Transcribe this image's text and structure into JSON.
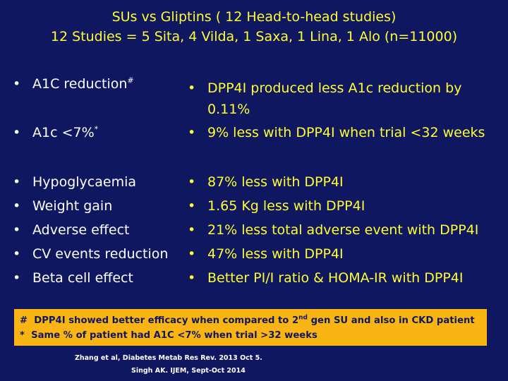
{
  "title": {
    "line1": "SUs vs Gliptins ( 12 Head-to-head studies)",
    "line2": "12 Studies = 5 Sita, 4 Vilda, 1 Saxa, 1 Lina, 1 Alo (n=11000)"
  },
  "bullet_char": "•",
  "left": {
    "a1c_reduction": "A1C reduction",
    "a1c_reduction_mark": "#",
    "a1c_target": "A1c <7%",
    "a1c_target_mark": "*",
    "hypoglycaemia": "Hypoglycaemia",
    "weight_gain": "Weight  gain",
    "adverse_effect": "Adverse effect",
    "cv_events": "CV events reduction",
    "beta_cell": "Beta cell effect"
  },
  "right": {
    "a1c_reduction_line1": "DPP4I produced less A1c reduction by",
    "a1c_reduction_line2": "0.11%",
    "a1c_target": "9% less with DPP4I when trial <32 weeks",
    "hypoglycaemia": "87% less with DPP4I",
    "weight_gain": "1.65 Kg less with DPP4I",
    "adverse_effect": "21% less total adverse event with DPP4I",
    "cv_events": "47% less with DPP4I",
    "beta_cell": "Better PI/I ratio & HOMA-IR with DPP4I"
  },
  "notes": {
    "note1_mark": "#",
    "note1_text_a": "DPP4I showed better efficacy  when compared to 2",
    "note1_sup": "nd",
    "note1_text_b": " gen SU and also in CKD patient",
    "note2_mark": "*",
    "note2_text": "Same % of patient had A1C <7% when trial >32 weeks"
  },
  "references": {
    "ref1": "Zhang et al, Diabetes Metab Res Rev. 2013 Oct 5.",
    "ref2": "Singh AK. IJEM,  Sept-Oct 2014"
  }
}
